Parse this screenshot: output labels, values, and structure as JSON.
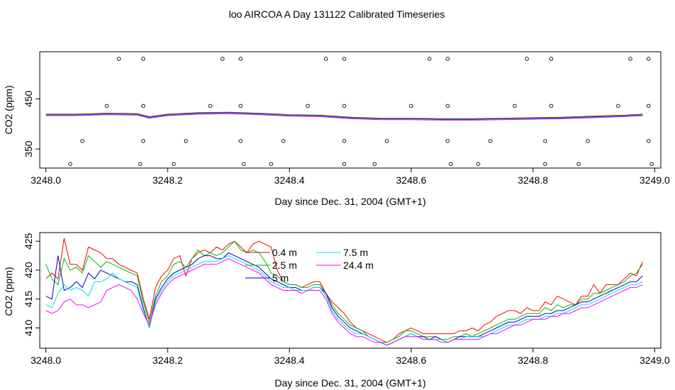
{
  "title": "loo AIRCOA A  Day 131122  Calibrated Timeseries",
  "chart_data": [
    {
      "type": "line",
      "xlabel": "Day since Dec. 31, 2004 (GMT+1)",
      "ylabel": "CO2 (ppm)",
      "xlim": [
        3247.99,
        3249.01
      ],
      "ylim": [
        312,
        544
      ],
      "xticks": [
        3248.0,
        3248.2,
        3248.4,
        3248.6,
        3248.8,
        3249.0
      ],
      "xtick_labels": [
        "3248.0",
        "3248.2",
        "3248.4",
        "3248.6",
        "3248.8",
        "3249.0"
      ],
      "yticks": [
        350,
        450
      ],
      "ytick_labels": [
        "350",
        "450"
      ],
      "series_colors": [
        "#ff0000",
        "#00bb00",
        "#0000cc",
        "#00e0e0",
        "#ff00ff"
      ],
      "x_common": [
        3248.0,
        3248.05,
        3248.1,
        3248.15,
        3248.17,
        3248.2,
        3248.25,
        3248.3,
        3248.35,
        3248.4,
        3248.45,
        3248.5,
        3248.55,
        3248.6,
        3248.65,
        3248.7,
        3248.75,
        3248.8,
        3248.85,
        3248.9,
        3248.95,
        3248.98
      ],
      "y_common": [
        418,
        418,
        420,
        419,
        413,
        418,
        421,
        422,
        420,
        417,
        416,
        412,
        410,
        410,
        409,
        409,
        410,
        411,
        412,
        414,
        416,
        418
      ],
      "markers": [
        {
          "x": 3248.12,
          "y": 530
        },
        {
          "x": 3248.16,
          "y": 530
        },
        {
          "x": 3248.29,
          "y": 530
        },
        {
          "x": 3248.32,
          "y": 530
        },
        {
          "x": 3248.46,
          "y": 530
        },
        {
          "x": 3248.49,
          "y": 530
        },
        {
          "x": 3248.63,
          "y": 530
        },
        {
          "x": 3248.66,
          "y": 530
        },
        {
          "x": 3248.79,
          "y": 530
        },
        {
          "x": 3248.83,
          "y": 530
        },
        {
          "x": 3248.96,
          "y": 530
        },
        {
          "x": 3248.99,
          "y": 530
        },
        {
          "x": 3248.1,
          "y": 436
        },
        {
          "x": 3248.16,
          "y": 436
        },
        {
          "x": 3248.27,
          "y": 436
        },
        {
          "x": 3248.32,
          "y": 436
        },
        {
          "x": 3248.43,
          "y": 436
        },
        {
          "x": 3248.49,
          "y": 436
        },
        {
          "x": 3248.6,
          "y": 436
        },
        {
          "x": 3248.66,
          "y": 436
        },
        {
          "x": 3248.77,
          "y": 436
        },
        {
          "x": 3248.83,
          "y": 436
        },
        {
          "x": 3248.94,
          "y": 436
        },
        {
          "x": 3248.99,
          "y": 436
        },
        {
          "x": 3248.06,
          "y": 366
        },
        {
          "x": 3248.16,
          "y": 366
        },
        {
          "x": 3248.23,
          "y": 366
        },
        {
          "x": 3248.32,
          "y": 366
        },
        {
          "x": 3248.39,
          "y": 366
        },
        {
          "x": 3248.49,
          "y": 366
        },
        {
          "x": 3248.56,
          "y": 366
        },
        {
          "x": 3248.66,
          "y": 366
        },
        {
          "x": 3248.73,
          "y": 366
        },
        {
          "x": 3248.82,
          "y": 366
        },
        {
          "x": 3248.89,
          "y": 366
        },
        {
          "x": 3248.99,
          "y": 366
        },
        {
          "x": 3248.04,
          "y": 320
        },
        {
          "x": 3248.155,
          "y": 320
        },
        {
          "x": 3248.21,
          "y": 320
        },
        {
          "x": 3248.325,
          "y": 320
        },
        {
          "x": 3248.37,
          "y": 320
        },
        {
          "x": 3248.49,
          "y": 320
        },
        {
          "x": 3248.54,
          "y": 320
        },
        {
          "x": 3248.665,
          "y": 320
        },
        {
          "x": 3248.71,
          "y": 320
        },
        {
          "x": 3248.82,
          "y": 320
        },
        {
          "x": 3248.875,
          "y": 320
        },
        {
          "x": 3248.995,
          "y": 320
        }
      ]
    },
    {
      "type": "line",
      "xlabel": "Day since Dec. 31, 2004 (GMT+1)",
      "ylabel": "CO2 (ppm)",
      "xlim": [
        3247.99,
        3249.01
      ],
      "ylim": [
        406.5,
        426.5
      ],
      "xticks": [
        3248.0,
        3248.2,
        3248.4,
        3248.6,
        3248.8,
        3249.0
      ],
      "xtick_labels": [
        "3248.0",
        "3248.2",
        "3248.4",
        "3248.6",
        "3248.8",
        "3249.0"
      ],
      "yticks": [
        410,
        415,
        420,
        425
      ],
      "ytick_labels": [
        "410",
        "415",
        "420",
        "425"
      ],
      "x": [
        3248.0,
        3248.01,
        3248.02,
        3248.03,
        3248.04,
        3248.05,
        3248.06,
        3248.07,
        3248.08,
        3248.09,
        3248.1,
        3248.11,
        3248.12,
        3248.13,
        3248.14,
        3248.15,
        3248.16,
        3248.17,
        3248.18,
        3248.19,
        3248.2,
        3248.21,
        3248.22,
        3248.23,
        3248.24,
        3248.25,
        3248.26,
        3248.27,
        3248.28,
        3248.29,
        3248.3,
        3248.31,
        3248.32,
        3248.33,
        3248.34,
        3248.35,
        3248.36,
        3248.37,
        3248.38,
        3248.39,
        3248.4,
        3248.41,
        3248.42,
        3248.43,
        3248.44,
        3248.45,
        3248.46,
        3248.47,
        3248.48,
        3248.49,
        3248.5,
        3248.51,
        3248.52,
        3248.53,
        3248.54,
        3248.55,
        3248.56,
        3248.57,
        3248.58,
        3248.59,
        3248.6,
        3248.61,
        3248.62,
        3248.63,
        3248.64,
        3248.65,
        3248.66,
        3248.67,
        3248.68,
        3248.69,
        3248.7,
        3248.71,
        3248.72,
        3248.73,
        3248.74,
        3248.75,
        3248.76,
        3248.77,
        3248.78,
        3248.79,
        3248.8,
        3248.81,
        3248.82,
        3248.83,
        3248.84,
        3248.85,
        3248.86,
        3248.87,
        3248.88,
        3248.89,
        3248.9,
        3248.91,
        3248.92,
        3248.93,
        3248.94,
        3248.95,
        3248.96,
        3248.97,
        3248.98
      ],
      "legend_placement": "top-center",
      "series": [
        {
          "name": "0.4 m",
          "color": "#ff0000",
          "values": [
            418.5,
            419.5,
            418.5,
            425.5,
            421.0,
            421.0,
            420.0,
            424.0,
            423.5,
            423.0,
            422.0,
            422.0,
            421.0,
            420.5,
            420.0,
            419.5,
            415.0,
            411.5,
            417.0,
            419.0,
            420.0,
            422.0,
            422.5,
            419.0,
            422.0,
            423.0,
            423.5,
            423.0,
            424.0,
            423.5,
            424.5,
            425.0,
            424.0,
            423.0,
            424.5,
            425.0,
            424.5,
            424.0,
            420.0,
            418.0,
            417.5,
            417.5,
            417.0,
            417.5,
            418.0,
            418.0,
            416.0,
            414.5,
            413.5,
            412.5,
            411.0,
            410.0,
            409.5,
            409.0,
            408.5,
            408.0,
            407.5,
            408.0,
            409.0,
            409.5,
            410.0,
            409.5,
            409.0,
            409.0,
            409.0,
            409.0,
            409.0,
            409.0,
            409.5,
            409.5,
            410.0,
            409.5,
            410.5,
            411.0,
            412.0,
            412.5,
            413.0,
            413.0,
            412.5,
            413.5,
            413.0,
            413.0,
            414.5,
            414.0,
            415.5,
            415.0,
            414.5,
            414.0,
            415.5,
            415.5,
            417.5,
            416.0,
            417.5,
            417.5,
            417.5,
            418.5,
            419.5,
            419.0,
            421.5
          ]
        },
        {
          "name": "2.5 m",
          "color": "#00bb00",
          "values": [
            421.0,
            418.5,
            417.5,
            422.0,
            420.0,
            420.5,
            419.5,
            422.5,
            421.5,
            420.5,
            421.5,
            421.0,
            420.5,
            420.0,
            419.5,
            419.0,
            414.5,
            411.0,
            415.5,
            418.0,
            419.0,
            421.0,
            421.5,
            420.5,
            422.0,
            423.5,
            422.5,
            423.0,
            422.5,
            423.0,
            424.0,
            425.0,
            423.5,
            423.0,
            423.5,
            423.0,
            421.5,
            419.5,
            419.0,
            418.0,
            417.5,
            417.5,
            417.0,
            417.0,
            417.5,
            417.5,
            416.0,
            414.0,
            412.5,
            411.5,
            410.5,
            410.0,
            409.5,
            408.5,
            408.0,
            407.5,
            407.5,
            408.0,
            408.5,
            409.5,
            409.5,
            409.0,
            408.5,
            408.5,
            408.5,
            408.0,
            408.0,
            408.5,
            408.5,
            409.0,
            408.5,
            409.0,
            409.5,
            410.0,
            410.5,
            411.0,
            411.5,
            411.5,
            412.0,
            412.5,
            412.5,
            412.5,
            413.5,
            413.0,
            414.0,
            413.5,
            414.0,
            414.0,
            415.0,
            415.0,
            416.0,
            416.0,
            416.5,
            417.0,
            417.5,
            418.0,
            419.0,
            419.5,
            421.0
          ]
        },
        {
          "name": "5 m",
          "color": "#0000cc",
          "values": [
            415.5,
            415.0,
            422.5,
            416.5,
            417.0,
            418.0,
            417.0,
            419.5,
            418.5,
            420.0,
            419.5,
            419.0,
            418.5,
            418.0,
            418.0,
            417.5,
            413.5,
            410.0,
            415.0,
            417.0,
            418.5,
            419.5,
            420.0,
            420.5,
            421.0,
            422.0,
            422.5,
            422.5,
            422.0,
            422.0,
            423.0,
            422.5,
            422.0,
            421.5,
            421.0,
            420.5,
            419.5,
            418.5,
            418.0,
            417.5,
            417.0,
            417.0,
            416.5,
            416.5,
            417.0,
            417.0,
            416.0,
            413.5,
            412.0,
            411.0,
            410.0,
            409.5,
            409.0,
            408.5,
            408.0,
            407.5,
            407.0,
            407.5,
            408.0,
            408.5,
            409.0,
            408.5,
            408.5,
            408.0,
            408.5,
            408.0,
            407.5,
            408.0,
            408.5,
            408.5,
            408.5,
            408.5,
            409.0,
            409.5,
            410.0,
            410.5,
            411.0,
            411.0,
            411.5,
            412.0,
            412.0,
            412.0,
            412.5,
            412.5,
            413.0,
            413.0,
            413.5,
            414.0,
            414.5,
            414.5,
            415.0,
            415.5,
            416.0,
            416.5,
            417.0,
            417.5,
            418.0,
            418.0,
            419.0
          ]
        },
        {
          "name": "7.5 m",
          "color": "#00e0e0",
          "values": [
            414.0,
            413.5,
            416.0,
            417.5,
            416.5,
            417.0,
            416.5,
            415.5,
            418.0,
            418.0,
            418.5,
            419.5,
            418.5,
            418.0,
            417.5,
            417.0,
            413.0,
            410.0,
            414.5,
            416.5,
            418.0,
            419.0,
            419.5,
            420.0,
            420.5,
            421.0,
            421.5,
            421.5,
            421.5,
            422.0,
            422.5,
            422.0,
            421.5,
            421.0,
            420.5,
            420.0,
            419.0,
            418.0,
            417.5,
            417.0,
            417.0,
            416.5,
            416.5,
            416.5,
            417.0,
            417.0,
            415.5,
            413.0,
            411.5,
            410.5,
            409.5,
            409.0,
            409.0,
            408.5,
            408.0,
            407.5,
            407.0,
            407.5,
            408.0,
            408.5,
            409.0,
            408.5,
            408.0,
            408.0,
            408.0,
            408.0,
            407.5,
            408.0,
            408.0,
            408.5,
            408.5,
            408.5,
            408.5,
            409.0,
            409.5,
            410.0,
            410.5,
            410.5,
            411.0,
            411.5,
            411.5,
            411.5,
            412.0,
            412.0,
            412.5,
            412.5,
            413.0,
            413.5,
            414.0,
            414.0,
            414.5,
            415.0,
            415.5,
            416.0,
            416.5,
            417.0,
            417.5,
            417.5,
            418.0
          ]
        },
        {
          "name": "24.4 m",
          "color": "#ff00ff",
          "values": [
            413.0,
            412.5,
            413.0,
            414.5,
            415.0,
            414.0,
            414.0,
            413.5,
            414.0,
            414.5,
            416.5,
            417.0,
            417.5,
            417.0,
            416.5,
            415.0,
            412.5,
            410.5,
            414.0,
            416.0,
            417.5,
            418.5,
            419.0,
            419.5,
            420.0,
            420.5,
            421.0,
            421.0,
            421.0,
            421.5,
            422.0,
            421.5,
            421.0,
            420.5,
            420.0,
            419.5,
            418.5,
            417.5,
            417.0,
            416.5,
            416.5,
            416.5,
            416.0,
            416.5,
            416.5,
            416.5,
            415.0,
            412.5,
            411.0,
            410.0,
            409.0,
            408.5,
            408.5,
            408.0,
            407.5,
            407.5,
            407.0,
            407.5,
            408.0,
            408.5,
            408.5,
            408.5,
            408.0,
            408.0,
            408.0,
            407.5,
            407.5,
            408.0,
            408.0,
            408.0,
            408.0,
            408.0,
            408.5,
            409.0,
            409.0,
            409.5,
            410.0,
            410.5,
            410.5,
            411.0,
            411.5,
            411.5,
            411.5,
            412.0,
            412.0,
            412.5,
            412.5,
            413.0,
            413.5,
            413.5,
            414.0,
            414.5,
            415.0,
            415.5,
            416.0,
            416.5,
            417.0,
            417.0,
            417.5
          ]
        }
      ]
    }
  ]
}
